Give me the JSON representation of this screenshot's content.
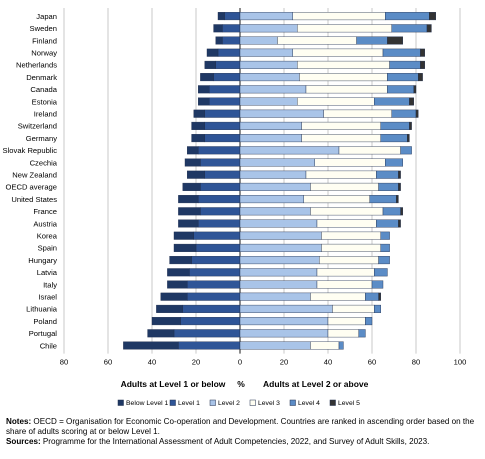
{
  "chart_data": {
    "type": "bar",
    "orientation": "horizontal",
    "stacked": "diverging",
    "categories": [
      "Japan",
      "Sweden",
      "Finland",
      "Norway",
      "Netherlands",
      "Denmark",
      "Canada",
      "Estonia",
      "Ireland",
      "Switzerland",
      "Germany",
      "Slovak Republic",
      "Czechia",
      "New Zealand",
      "OECD average",
      "United States",
      "France",
      "Austria",
      "Korea",
      "Spain",
      "Hungary",
      "Latvia",
      "Italy",
      "Israel",
      "Lithuania",
      "Poland",
      "Portugal",
      "Chile"
    ],
    "negative_series": [
      {
        "name": "Below Level 1",
        "color": "#1f3864",
        "values": [
          3,
          4,
          3,
          5,
          5,
          6,
          5,
          5,
          5,
          6,
          6,
          5,
          7,
          8,
          8,
          9,
          10,
          9,
          9,
          10,
          10,
          10,
          9,
          12,
          12,
          13,
          12,
          25
        ]
      },
      {
        "name": "Level 1",
        "color": "#2f5597",
        "values": [
          7,
          8,
          8,
          10,
          11,
          12,
          14,
          14,
          16,
          16,
          16,
          19,
          18,
          16,
          18,
          19,
          18,
          19,
          21,
          20,
          22,
          23,
          24,
          24,
          26,
          27,
          30,
          28
        ]
      }
    ],
    "positive_series": [
      {
        "name": "Level 2",
        "color": "#a9c4e8",
        "values": [
          24,
          26,
          17,
          24,
          26,
          27,
          30,
          26,
          38,
          28,
          28,
          45,
          34,
          30,
          32,
          29,
          32,
          35,
          37,
          37,
          36,
          35,
          35,
          32,
          42,
          40,
          40,
          32
        ]
      },
      {
        "name": "Level 3",
        "color": "#fffef2",
        "values": [
          42,
          43,
          36,
          41,
          42,
          40,
          37,
          35,
          31,
          36,
          36,
          28,
          32,
          32,
          31,
          30,
          33,
          27,
          27,
          27,
          27,
          26,
          25,
          25,
          19,
          17,
          14,
          13
        ]
      },
      {
        "name": "Level 4",
        "color": "#5b8cc6",
        "values": [
          20,
          16,
          14,
          17,
          14,
          14,
          12,
          16,
          11,
          13,
          12,
          5,
          8,
          10,
          9,
          12,
          8,
          10,
          4,
          4,
          5,
          6,
          5,
          6,
          3,
          3,
          3,
          2
        ]
      },
      {
        "name": "Level 5",
        "color": "#333333",
        "values": [
          3,
          2,
          7,
          2,
          2,
          2,
          1,
          2,
          1,
          1,
          1,
          0,
          0,
          1,
          1,
          1,
          1,
          1,
          0,
          0,
          0,
          0,
          0,
          1,
          0,
          0,
          0,
          0
        ]
      }
    ],
    "xlim": [
      -80,
      100
    ],
    "xticks": [
      -80,
      -60,
      -40,
      -20,
      0,
      20,
      40,
      60,
      80,
      100
    ],
    "xtick_labels": [
      "80",
      "60",
      "40",
      "20",
      "0",
      "20",
      "40",
      "60",
      "80",
      "100"
    ],
    "grid": true,
    "legend_position": "bottom",
    "label_left": "Adults at Level 1 or below",
    "label_center": "%",
    "label_right": "Adults at Level 2 or above"
  },
  "notes": {
    "notes_label": "Notes:",
    "notes_text": " OECD = Organisation for Economic Co-operation and Development. Countries are ranked in ascending order based on the share of adults scoring at or below Level 1.",
    "sources_label": "Sources:",
    "sources_text": " Programme for the International Assessment of Adult Competencies, 2022, and Survey of Adult Skills, 2023."
  }
}
